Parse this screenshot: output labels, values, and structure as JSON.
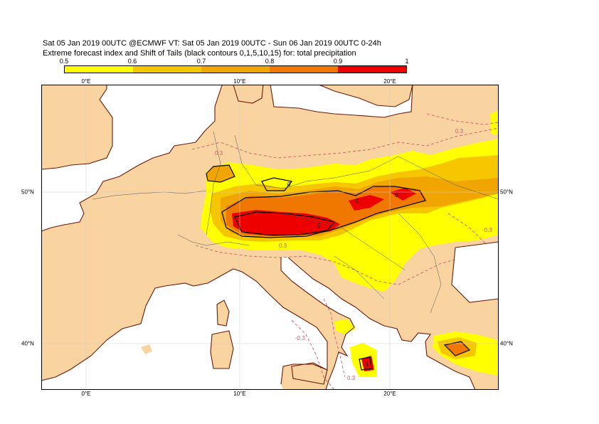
{
  "title": {
    "line1": "Sat 05 Jan 2019 00UTC @ECMWF VT: Sat 05 Jan 2019 00UTC - Sun 06 Jan 2019 00UTC  0-24h",
    "line2": "Extreme forecast index and Shift of Tails (black contours 0,1,5,10,15) for: total precipitation"
  },
  "colorbar": {
    "labels": [
      "0.5",
      "0.6",
      "0.7",
      "0.8",
      "0.9",
      "1"
    ],
    "colors": [
      "#ffff00",
      "#f6c600",
      "#f0a500",
      "#f07800",
      "#ee0000"
    ]
  },
  "axes": {
    "lon_top": [
      "0°E",
      "10°E",
      "20°E"
    ],
    "lon_bottom": [
      "0°E",
      "10°E",
      "20°E"
    ],
    "lat_left": [
      "50°N",
      "40°N"
    ],
    "lat_right": [
      "50°N",
      "40°N"
    ]
  },
  "colors": {
    "land": "#f9d4a1",
    "sea": "#ffffff",
    "coast": "#6b1a0a",
    "border": "#555555",
    "efi_dashed": "#d0596b"
  },
  "contour_labels": {
    "black": [
      "0",
      "0",
      "1",
      "0",
      "0"
    ],
    "dashed": [
      "0.3",
      "0.3",
      "0.3",
      "0.3",
      "-0.3",
      "-0.3"
    ]
  }
}
